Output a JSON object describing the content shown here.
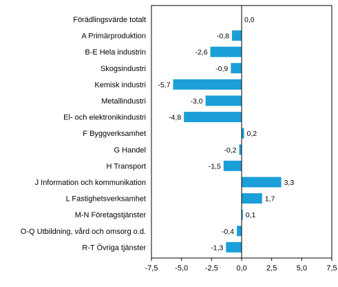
{
  "chart_data": {
    "type": "bar",
    "orientation": "horizontal",
    "categories": [
      "Förädlingsvärde totalt",
      "A Primärproduktion",
      "B-E Hela industrin",
      "Skogsindustri",
      "Kemisk industri",
      "Metallindustri",
      "El- och elektronikindustri",
      "F Byggverksamhet",
      "G Handel",
      "H Transport",
      "J Information och kommunikation",
      "L Fastighetsverksamhet",
      "M-N Företagstjänster",
      "O-Q Utbildning, vård och omsorg o.d.",
      "R-T Övriga tjänster"
    ],
    "values": [
      0.0,
      -0.8,
      -2.6,
      -0.9,
      -5.7,
      -3.0,
      -4.8,
      0.2,
      -0.2,
      -1.5,
      3.3,
      1.7,
      0.1,
      -0.4,
      -1.3
    ],
    "value_labels": [
      "0,0",
      "-0,8",
      "-2,6",
      "-0,9",
      "-5,7",
      "-3,0",
      "-4,8",
      "0,2",
      "-0,2",
      "-1,5",
      "3,3",
      "1,7",
      "0,1",
      "-0,4",
      "-1,3"
    ],
    "xlim": [
      -7.5,
      7.5
    ],
    "xticks": [
      -7.5,
      -5.0,
      -2.5,
      0.0,
      2.5,
      5.0,
      7.5
    ],
    "xtick_labels": [
      "-7,5",
      "-5,0",
      "-2,5",
      "0,0",
      "2,5",
      "5,0",
      "7,5"
    ],
    "grid": false,
    "bar_color": "#1a9fd9",
    "axis_color": "#000000"
  }
}
